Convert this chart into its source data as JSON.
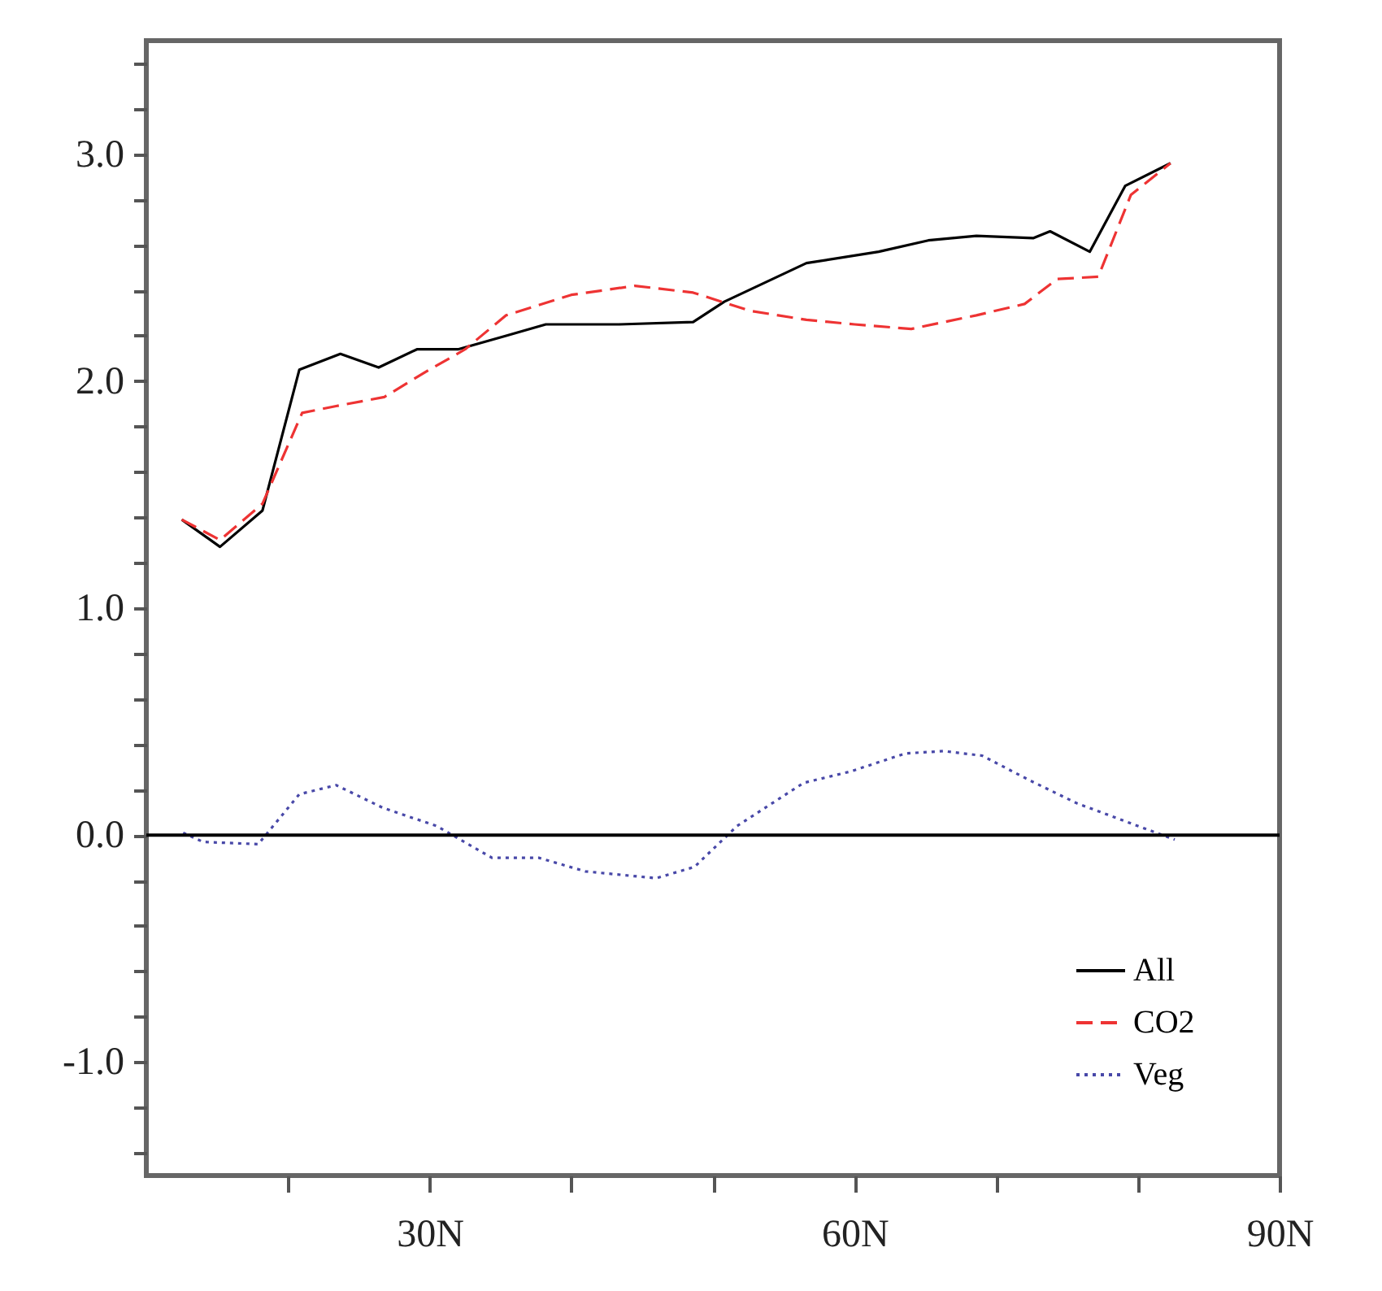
{
  "chart_data": {
    "type": "line",
    "xlim": [
      10,
      90
    ],
    "ylim": [
      -1.5,
      3.5
    ],
    "xticks": [
      {
        "value": 20,
        "label": null
      },
      {
        "value": 30,
        "label": "30N"
      },
      {
        "value": 40,
        "label": null
      },
      {
        "value": 50,
        "label": null
      },
      {
        "value": 60,
        "label": "60N"
      },
      {
        "value": 70,
        "label": null
      },
      {
        "value": 80,
        "label": null
      },
      {
        "value": 90,
        "label": "90N"
      }
    ],
    "yticks": [
      {
        "value": -1.4,
        "label": null
      },
      {
        "value": -1.2,
        "label": null
      },
      {
        "value": -1,
        "label": "-1.0"
      },
      {
        "value": -0.8,
        "label": null
      },
      {
        "value": -0.6,
        "label": null
      },
      {
        "value": -0.4,
        "label": null
      },
      {
        "value": -0.2,
        "label": null
      },
      {
        "value": 0,
        "label": "0.0"
      },
      {
        "value": 0.2,
        "label": null
      },
      {
        "value": 0.4,
        "label": null
      },
      {
        "value": 0.6,
        "label": null
      },
      {
        "value": 0.8,
        "label": null
      },
      {
        "value": 1,
        "label": "1.0"
      },
      {
        "value": 1.2,
        "label": null
      },
      {
        "value": 1.4,
        "label": null
      },
      {
        "value": 1.6,
        "label": null
      },
      {
        "value": 1.8,
        "label": null
      },
      {
        "value": 2,
        "label": "2.0"
      },
      {
        "value": 2.2,
        "label": null
      },
      {
        "value": 2.4,
        "label": null
      },
      {
        "value": 2.6,
        "label": null
      },
      {
        "value": 2.8,
        "label": null
      },
      {
        "value": 3,
        "label": "3.0"
      },
      {
        "value": 3.2,
        "label": null
      },
      {
        "value": 3.4,
        "label": null
      }
    ],
    "legend": "bottom right",
    "grid": false,
    "ref_lines": [
      {
        "axis": "y",
        "value": 0,
        "color": "#000000",
        "line_style": "solid"
      }
    ],
    "series": [
      {
        "name": "All",
        "color": "#000000",
        "line_style": "solid",
        "x": [
          12.5,
          15.2,
          18.2,
          20.8,
          23.7,
          26.4,
          29.1,
          32,
          35.4,
          38.2,
          43.4,
          48.6,
          50.8,
          56.6,
          61.7,
          65.2,
          68.6,
          72.6,
          73.8,
          76.6,
          79.1,
          82.3
        ],
        "values": [
          1.39,
          1.27,
          1.43,
          2.05,
          2.12,
          2.06,
          2.14,
          2.14,
          2.2,
          2.25,
          2.25,
          2.26,
          2.35,
          2.52,
          2.57,
          2.62,
          2.64,
          2.63,
          2.66,
          2.57,
          2.86,
          2.96
        ]
      },
      {
        "name": "CO2",
        "color": "#ee3333",
        "line_style": "dashed",
        "x": [
          12.5,
          15.2,
          18.2,
          21,
          23.4,
          26.8,
          29.7,
          32.5,
          35.4,
          40,
          44.5,
          48.6,
          52.6,
          56.6,
          60,
          64,
          68.6,
          72,
          74.3,
          77.2,
          79.5,
          82.3
        ],
        "values": [
          1.39,
          1.3,
          1.46,
          1.86,
          1.89,
          1.93,
          2.04,
          2.14,
          2.29,
          2.38,
          2.42,
          2.39,
          2.31,
          2.27,
          2.25,
          2.23,
          2.29,
          2.34,
          2.45,
          2.46,
          2.82,
          2.96
        ]
      },
      {
        "name": "Veg",
        "color": "#4848a8",
        "line_style": "dotted",
        "x": [
          12.6,
          14,
          17.9,
          20.8,
          23.4,
          26.7,
          30.5,
          34.4,
          37.7,
          41,
          46,
          48.7,
          51.7,
          56.4,
          59.7,
          63.6,
          66.3,
          69,
          72.4,
          75.7,
          80,
          82.6
        ],
        "values": [
          0.01,
          -0.03,
          -0.04,
          0.18,
          0.22,
          0.12,
          0.04,
          -0.1,
          -0.1,
          -0.16,
          -0.19,
          -0.14,
          0.04,
          0.23,
          0.28,
          0.36,
          0.37,
          0.35,
          0.24,
          0.14,
          0.04,
          -0.02
        ]
      }
    ]
  }
}
